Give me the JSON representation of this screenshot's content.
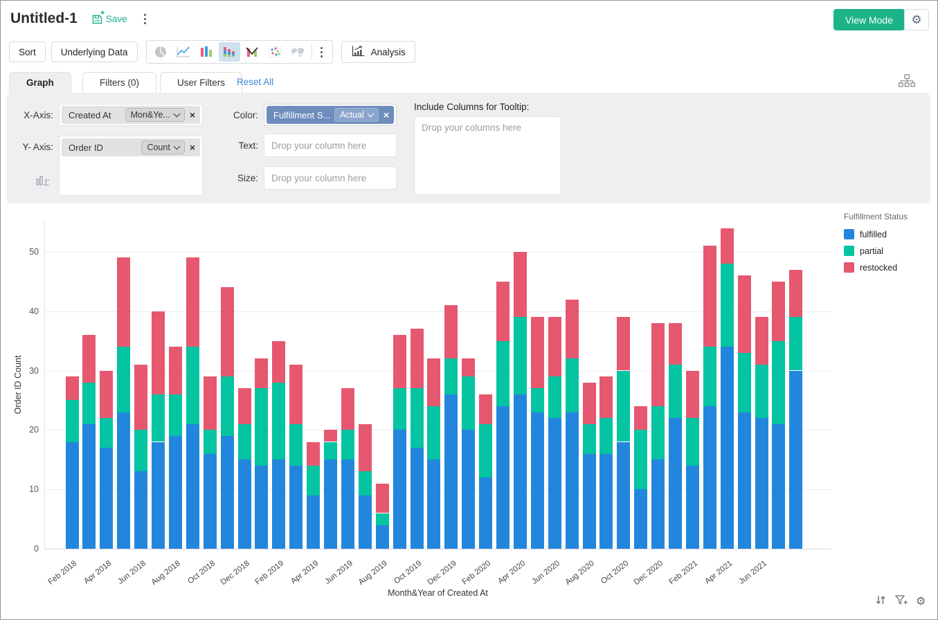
{
  "header": {
    "title": "Untitled-1",
    "save_label": "Save",
    "view_mode_label": "View Mode"
  },
  "toolbar": {
    "sort_label": "Sort",
    "underlying_data_label": "Underlying Data",
    "analysis_label": "Analysis"
  },
  "tabs": {
    "graph": "Graph",
    "filters": "Filters (0)",
    "user_filters": "User Filters",
    "reset_all": "Reset All"
  },
  "panel": {
    "x_axis_label": "X-Axis:",
    "y_axis_label": "Y- Axis:",
    "color_label": "Color:",
    "text_label": "Text:",
    "size_label": "Size:",
    "tooltip_label": "Include Columns for Tooltip:",
    "x_chip": {
      "field": "Created At",
      "agg": "Mon&Ye..."
    },
    "y_chip": {
      "field": "Order ID",
      "agg": "Count"
    },
    "color_chip": {
      "field": "Fulfillment S...",
      "agg": "Actual"
    },
    "drop_single_placeholder": "Drop your column here",
    "drop_multi_placeholder": "Drop your columns here"
  },
  "chart": {
    "legend_title": "Fulfillment Status",
    "y_title": "Order ID Count",
    "x_title": "Month&Year of Created At"
  },
  "colors": {
    "accent_teal": "#1db388",
    "link_blue": "#3c86d8",
    "chip_slate": "#6d8ebd",
    "fulfilled": "#2386dd",
    "partial": "#04c4a2",
    "restocked": "#e5586f"
  },
  "chart_data": {
    "type": "bar",
    "stacked": true,
    "title": "",
    "xlabel": "Month&Year of Created At",
    "ylabel": "Order ID Count",
    "ylim": [
      0,
      55
    ],
    "yticks": [
      0,
      10,
      20,
      30,
      40,
      50
    ],
    "grid": true,
    "legend_position": "top-right",
    "tick_every": 2,
    "categories": [
      "Feb 2018",
      "Mar 2018",
      "Apr 2018",
      "May 2018",
      "Jun 2018",
      "Jul 2018",
      "Aug 2018",
      "Sep 2018",
      "Oct 2018",
      "Nov 2018",
      "Dec 2018",
      "Jan 2019",
      "Feb 2019",
      "Mar 2019",
      "Apr 2019",
      "May 2019",
      "Jun 2019",
      "Jul 2019",
      "Aug 2019",
      "Sep 2019",
      "Oct 2019",
      "Nov 2019",
      "Dec 2019",
      "Jan 2020",
      "Feb 2020",
      "Mar 2020",
      "Apr 2020",
      "May 2020",
      "Jun 2020",
      "Jul 2020",
      "Aug 2020",
      "Sep 2020",
      "Oct 2020",
      "Nov 2020",
      "Dec 2020",
      "Jan 2021",
      "Feb 2021",
      "Mar 2021",
      "Apr 2021",
      "May 2021",
      "Jun 2021",
      "Jul 2021",
      "Aug 2021"
    ],
    "series": [
      {
        "name": "fulfilled",
        "color": "#2386dd",
        "values": [
          18,
          21,
          17,
          23,
          13,
          18,
          19,
          21,
          16,
          19,
          15,
          14,
          15,
          14,
          9,
          15,
          15,
          9,
          4,
          20,
          17,
          15,
          26,
          20,
          12,
          24,
          26,
          23,
          22,
          23,
          16,
          16,
          18,
          10,
          15,
          22,
          14,
          24,
          34,
          23,
          22,
          21,
          30
        ]
      },
      {
        "name": "partial",
        "color": "#04c4a2",
        "values": [
          7,
          7,
          5,
          11,
          7,
          8,
          7,
          13,
          4,
          10,
          6,
          13,
          13,
          7,
          5,
          3,
          5,
          4,
          2,
          7,
          10,
          9,
          6,
          9,
          9,
          11,
          13,
          4,
          7,
          9,
          5,
          6,
          12,
          10,
          9,
          9,
          8,
          10,
          14,
          10,
          9,
          14,
          9
        ]
      },
      {
        "name": "restocked",
        "color": "#e5586f",
        "values": [
          4,
          8,
          8,
          15,
          11,
          14,
          8,
          15,
          9,
          15,
          6,
          5,
          7,
          10,
          4,
          2,
          7,
          8,
          5,
          9,
          10,
          8,
          9,
          3,
          5,
          10,
          11,
          12,
          10,
          10,
          7,
          7,
          9,
          4,
          14,
          7,
          8,
          17,
          6,
          13,
          8,
          10,
          8
        ]
      }
    ],
    "totals": [
      29,
      36,
      30,
      49,
      31,
      40,
      34,
      49,
      29,
      44,
      27,
      32,
      35,
      31,
      18,
      20,
      27,
      21,
      11,
      36,
      37,
      32,
      41,
      32,
      26,
      45,
      50,
      39,
      39,
      42,
      28,
      29,
      39,
      24,
      38,
      38,
      30,
      51,
      54,
      46,
      39,
      45,
      47
    ]
  }
}
